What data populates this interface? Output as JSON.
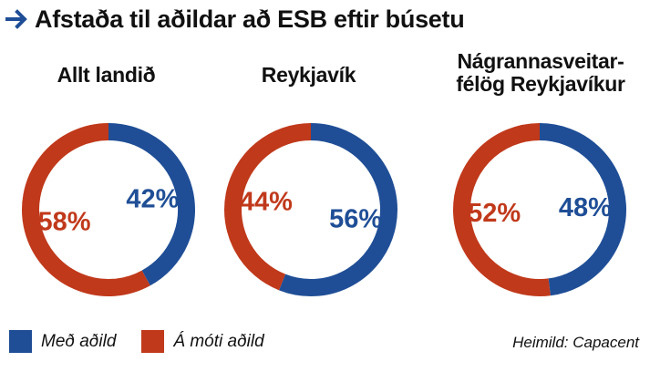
{
  "header": {
    "title": "Afstaða til aðildar að ESB eftir búsetu",
    "arrow_icon": "arrow-right-icon",
    "arrow_color": "#1f4e96"
  },
  "colors": {
    "for": "#1f4e96",
    "against": "#c0391b"
  },
  "chart_data": [
    {
      "type": "pie",
      "title": "Allt landið",
      "slices": [
        {
          "label": "Með aðild",
          "value": 42,
          "display": "42%"
        },
        {
          "label": "Á móti aðild",
          "value": 58,
          "display": "58%"
        }
      ]
    },
    {
      "type": "pie",
      "title": "Reykjavík",
      "slices": [
        {
          "label": "Með aðild",
          "value": 56,
          "display": "56%"
        },
        {
          "label": "Á móti aðild",
          "value": 44,
          "display": "44%"
        }
      ]
    },
    {
      "type": "pie",
      "title": "Nágrannasveitar-félög Reykjavíkur",
      "title_lines": [
        "Nágrannasveitar-",
        "félög Reykjavíkur"
      ],
      "slices": [
        {
          "label": "Með aðild",
          "value": 48,
          "display": "48%"
        },
        {
          "label": "Á móti aðild",
          "value": 52,
          "display": "52%"
        }
      ]
    }
  ],
  "legend": {
    "items": [
      {
        "label": "Með aðild",
        "color": "#1f4e96"
      },
      {
        "label": "Á móti aðild",
        "color": "#c0391b"
      }
    ],
    "placement": "bottom-left"
  },
  "source": "Heimild: Capacent"
}
